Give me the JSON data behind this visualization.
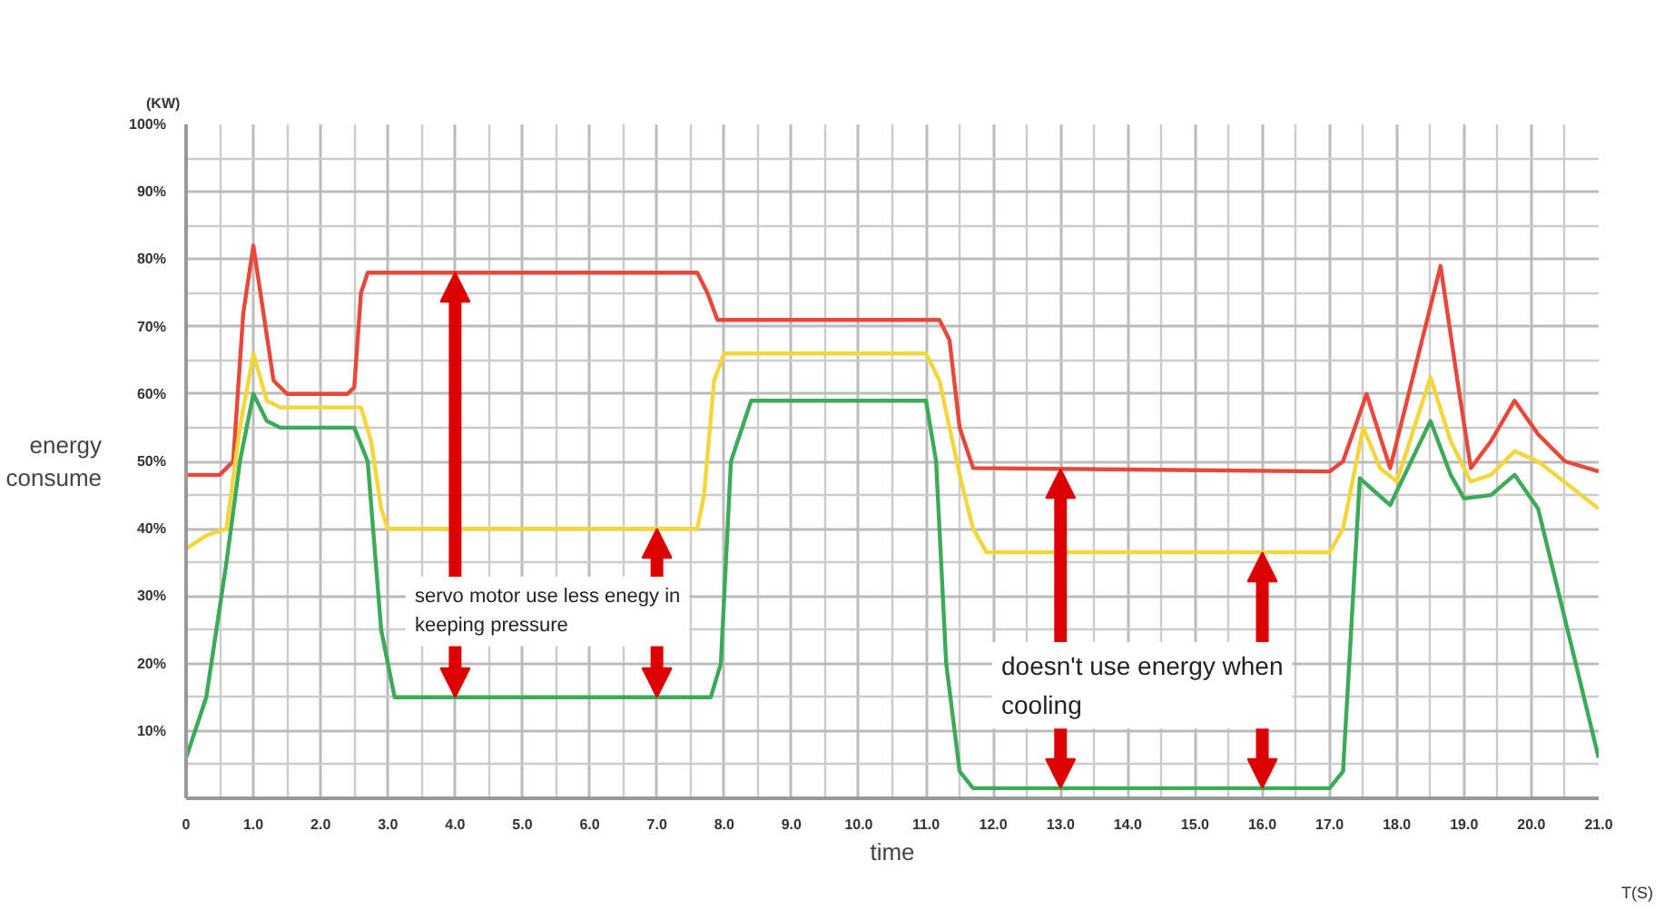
{
  "chart_data": {
    "type": "line",
    "xlabel": "time",
    "ylabel": "energy consume",
    "series": [
      {
        "color": "#e8473a",
        "x": [
          0,
          0.5,
          0.7,
          0.85,
          1.0,
          1.15,
          1.3,
          1.5,
          2.4,
          2.5,
          2.6,
          2.7,
          7.6,
          7.75,
          7.9,
          11.2,
          11.35,
          11.5,
          11.7,
          17.0,
          17.2,
          17.55,
          17.9,
          18.3,
          18.65,
          18.9,
          19.1,
          19.4,
          19.75,
          20.1,
          20.5,
          21
        ],
        "values": [
          48,
          48,
          50,
          72,
          82,
          72,
          62,
          60,
          60,
          61,
          75,
          78,
          78,
          75,
          71,
          71,
          68,
          55,
          49,
          48.5,
          50,
          60,
          49,
          65,
          79,
          62,
          49,
          53,
          59,
          54,
          50,
          48.5
        ]
      },
      {
        "color": "#f5d63a",
        "x": [
          0,
          0.3,
          0.6,
          0.8,
          1.0,
          1.2,
          1.4,
          2.6,
          2.75,
          2.9,
          3.0,
          7.6,
          7.7,
          7.85,
          8.0,
          11.0,
          11.2,
          11.5,
          11.7,
          11.9,
          17.0,
          17.2,
          17.5,
          17.75,
          18.0,
          18.5,
          18.8,
          19.1,
          19.4,
          19.75,
          20.1,
          21
        ],
        "values": [
          37,
          39,
          40,
          55,
          66,
          59,
          58,
          58,
          53,
          43,
          40,
          40,
          45,
          62,
          66,
          66,
          62,
          48,
          40,
          36.5,
          36.5,
          40,
          55,
          49,
          47,
          62.5,
          53,
          47,
          48,
          51.5,
          50,
          43
        ]
      },
      {
        "color": "#3bab5a",
        "x": [
          0,
          0.3,
          0.6,
          0.8,
          1.0,
          1.2,
          1.4,
          2.5,
          2.7,
          2.9,
          3.1,
          7.8,
          7.95,
          8.1,
          8.4,
          11.0,
          11.15,
          11.3,
          11.5,
          11.7,
          17.0,
          17.2,
          17.45,
          17.9,
          18.5,
          18.8,
          19.0,
          19.4,
          19.75,
          20.1,
          21
        ],
        "values": [
          6,
          15,
          35,
          50,
          60,
          56,
          55,
          55,
          50,
          25,
          15,
          15,
          20,
          50,
          59,
          59,
          50,
          20,
          4,
          1.5,
          1.5,
          4,
          47.5,
          43.5,
          56,
          48,
          44.5,
          45,
          48,
          43,
          6
        ]
      }
    ],
    "xlim": [
      0,
      21
    ],
    "ylim": [
      0,
      100
    ],
    "xticks": [
      0,
      {
        "value": 1,
        "label": "1.0"
      },
      {
        "value": 2,
        "label": "2.0"
      },
      {
        "value": 3,
        "label": "3.0"
      },
      {
        "value": 4,
        "label": "4.0"
      },
      {
        "value": 5,
        "label": "5.0"
      },
      {
        "value": 6,
        "label": "6.0"
      },
      {
        "value": 7,
        "label": "7.0"
      },
      {
        "value": 8,
        "label": "8.0"
      },
      {
        "value": 9,
        "label": "9.0"
      },
      {
        "value": 10,
        "label": "10.0"
      },
      {
        "value": 11,
        "label": "11.0"
      },
      {
        "value": 12,
        "label": "12.0"
      },
      {
        "value": 13,
        "label": "13.0"
      },
      {
        "value": 14,
        "label": "14.0"
      },
      {
        "value": 15,
        "label": "15.0"
      },
      {
        "value": 16,
        "label": "16.0"
      },
      {
        "value": 17,
        "label": "17.0"
      },
      {
        "value": 18,
        "label": "18.0"
      },
      {
        "value": 19,
        "label": "19.0"
      },
      {
        "value": 20,
        "label": "20.0"
      },
      {
        "value": 21,
        "label": "21.0"
      }
    ],
    "yticks": [
      {
        "value": 10,
        "label": "10%"
      },
      {
        "value": 20,
        "label": "20%"
      },
      {
        "value": 30,
        "label": "30%"
      },
      {
        "value": 40,
        "label": "40%"
      },
      {
        "value": 50,
        "label": "50%"
      },
      {
        "value": 60,
        "label": "60%"
      },
      {
        "value": 70,
        "label": "70%"
      },
      {
        "value": 80,
        "label": "80%"
      },
      {
        "value": 90,
        "label": "90%"
      },
      {
        "value": 100,
        "label": "100%"
      }
    ],
    "grid": true,
    "marker": "none",
    "line_style": "solid",
    "annotations": [
      "(KW)",
      "T(S)",
      "servo motor use less enegy in\nkeeping pressure",
      "doesn't use energy when\ncooling"
    ]
  }
}
